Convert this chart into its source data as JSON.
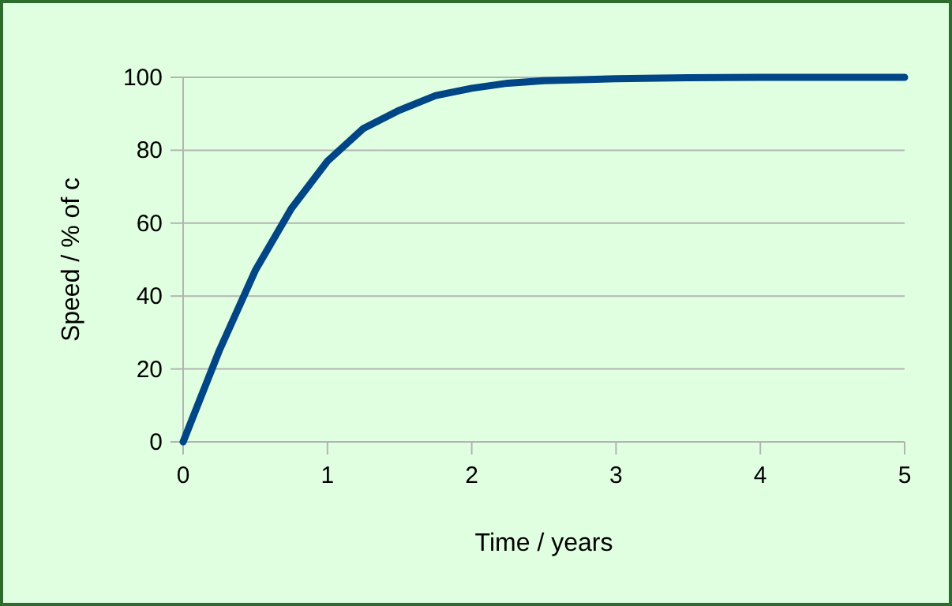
{
  "chart_data": {
    "type": "line",
    "xlabel": "Time / years",
    "ylabel": "Speed / % of c",
    "x": [
      0,
      0.25,
      0.5,
      0.75,
      1,
      1.25,
      1.5,
      1.75,
      2,
      2.25,
      2.5,
      3,
      3.5,
      4,
      4.5,
      5
    ],
    "series": [
      {
        "color": "#004586",
        "values": [
          0,
          25,
          47,
          64,
          77,
          86,
          91,
          95,
          97,
          98.4,
          99.1,
          99.6,
          99.9,
          100,
          100,
          100
        ]
      }
    ],
    "xlim": [
      0,
      5
    ],
    "xticks": [
      0,
      1,
      2,
      3,
      4,
      5
    ],
    "ylim": [
      0,
      100
    ],
    "yticks": [
      0,
      20,
      40,
      60,
      80,
      100
    ],
    "grid": "y",
    "marker": "none",
    "line_style": "solid"
  }
}
